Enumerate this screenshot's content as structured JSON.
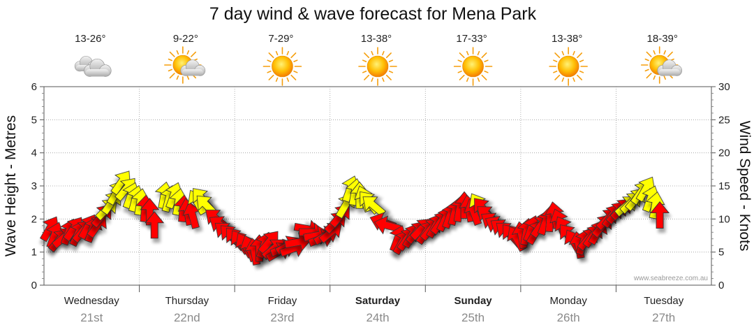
{
  "chart_data": {
    "type": "scatter",
    "title": "7 day wind & wave forecast for Mena Park",
    "ylabel_left": "Wave Height - Metres",
    "ylabel_right": "Wind Speed - Knots",
    "ylim_left": [
      0,
      6
    ],
    "ylim_right": [
      0,
      30
    ],
    "yticks_left": [
      "0",
      "1",
      "2",
      "3",
      "4",
      "5",
      "6"
    ],
    "yticks_right": [
      "0",
      "5",
      "10",
      "15",
      "20",
      "25",
      "30"
    ],
    "credit": "www.seabreeze.com.au",
    "colors": {
      "strong": "#ff0000",
      "moderate": "#ffff00",
      "outline": "#333333",
      "grid": "#9a9a9a"
    },
    "days": [
      {
        "name": "Wednesday",
        "date": "21st",
        "bold": false,
        "temp": "13-26°",
        "icon": "cloudy-icon"
      },
      {
        "name": "Thursday",
        "date": "22nd",
        "bold": false,
        "temp": "9-22°",
        "icon": "sun-cloud-icon"
      },
      {
        "name": "Friday",
        "date": "23rd",
        "bold": false,
        "temp": "7-29°",
        "icon": "sun-icon"
      },
      {
        "name": "Saturday",
        "date": "24th",
        "bold": true,
        "temp": "13-38°",
        "icon": "sun-icon"
      },
      {
        "name": "Sunday",
        "date": "25th",
        "bold": true,
        "temp": "17-33°",
        "icon": "sun-icon"
      },
      {
        "name": "Monday",
        "date": "26th",
        "bold": false,
        "temp": "13-38°",
        "icon": "sun-icon"
      },
      {
        "name": "Tuesday",
        "date": "27th",
        "bold": false,
        "temp": "18-39°",
        "icon": "sun-cloud-icon"
      }
    ],
    "wind_series": {
      "name": "Wind",
      "points": [
        {
          "t": 0.0,
          "knots": 8.5,
          "dir": 210,
          "c": "red"
        },
        {
          "t": 0.05,
          "knots": 7.5,
          "dir": 200,
          "c": "red"
        },
        {
          "t": 0.1,
          "knots": 6.8,
          "dir": 220,
          "c": "red"
        },
        {
          "t": 0.15,
          "knots": 7.2,
          "dir": 230,
          "c": "red"
        },
        {
          "t": 0.2,
          "knots": 8.0,
          "dir": 200,
          "c": "red"
        },
        {
          "t": 0.25,
          "knots": 8.5,
          "dir": 215,
          "c": "red"
        },
        {
          "t": 0.3,
          "knots": 7.8,
          "dir": 205,
          "c": "red"
        },
        {
          "t": 0.35,
          "knots": 8.2,
          "dir": 220,
          "c": "red"
        },
        {
          "t": 0.4,
          "knots": 8.8,
          "dir": 210,
          "c": "red"
        },
        {
          "t": 0.45,
          "knots": 8.4,
          "dir": 200,
          "c": "red"
        },
        {
          "t": 0.5,
          "knots": 9.0,
          "dir": 215,
          "c": "red"
        },
        {
          "t": 0.55,
          "knots": 10.5,
          "dir": 220,
          "c": "red"
        },
        {
          "t": 0.6,
          "knots": 11.5,
          "dir": 225,
          "c": "yellow"
        },
        {
          "t": 0.65,
          "knots": 12.5,
          "dir": 215,
          "c": "yellow"
        },
        {
          "t": 0.7,
          "knots": 14.0,
          "dir": 210,
          "c": "yellow"
        },
        {
          "t": 0.75,
          "knots": 15.5,
          "dir": 215,
          "c": "yellow"
        },
        {
          "t": 0.8,
          "knots": 14.5,
          "dir": 220,
          "c": "yellow"
        },
        {
          "t": 0.85,
          "knots": 13.5,
          "dir": 200,
          "c": "yellow"
        },
        {
          "t": 0.9,
          "knots": 13.0,
          "dir": 195,
          "c": "yellow"
        },
        {
          "t": 0.95,
          "knots": 12.5,
          "dir": 190,
          "c": "yellow"
        },
        {
          "t": 1.0,
          "knots": 11.5,
          "dir": 185,
          "c": "red"
        },
        {
          "t": 1.05,
          "knots": 11.0,
          "dir": 180,
          "c": "red"
        },
        {
          "t": 1.1,
          "knots": 9.0,
          "dir": 180,
          "c": "red"
        },
        {
          "t": 1.2,
          "knots": 13.5,
          "dir": 190,
          "c": "yellow"
        },
        {
          "t": 1.25,
          "knots": 13.0,
          "dir": 195,
          "c": "yellow"
        },
        {
          "t": 1.3,
          "knots": 13.5,
          "dir": 200,
          "c": "yellow"
        },
        {
          "t": 1.35,
          "knots": 12.5,
          "dir": 190,
          "c": "yellow"
        },
        {
          "t": 1.4,
          "knots": 11.5,
          "dir": 185,
          "c": "red"
        },
        {
          "t": 1.45,
          "knots": 11.0,
          "dir": 170,
          "c": "red"
        },
        {
          "t": 1.5,
          "knots": 10.5,
          "dir": 165,
          "c": "red"
        },
        {
          "t": 1.55,
          "knots": 12.5,
          "dir": 150,
          "c": "yellow"
        },
        {
          "t": 1.6,
          "knots": 13.0,
          "dir": 140,
          "c": "yellow"
        },
        {
          "t": 1.65,
          "knots": 12.0,
          "dir": 135,
          "c": "yellow"
        },
        {
          "t": 1.75,
          "knots": 10.0,
          "dir": 130,
          "c": "red"
        },
        {
          "t": 1.8,
          "knots": 9.0,
          "dir": 125,
          "c": "red"
        },
        {
          "t": 1.85,
          "knots": 8.0,
          "dir": 130,
          "c": "red"
        },
        {
          "t": 1.9,
          "knots": 7.5,
          "dir": 135,
          "c": "red"
        },
        {
          "t": 1.95,
          "knots": 7.0,
          "dir": 140,
          "c": "red"
        },
        {
          "t": 2.0,
          "knots": 6.5,
          "dir": 145,
          "c": "red"
        },
        {
          "t": 2.05,
          "knots": 6.0,
          "dir": 150,
          "c": "red"
        },
        {
          "t": 2.1,
          "knots": 5.5,
          "dir": 160,
          "c": "red"
        },
        {
          "t": 2.15,
          "knots": 5.0,
          "dir": 170,
          "c": "red"
        },
        {
          "t": 2.2,
          "knots": 5.5,
          "dir": 180,
          "c": "red"
        },
        {
          "t": 2.25,
          "knots": 6.0,
          "dir": 200,
          "c": "red"
        },
        {
          "t": 2.3,
          "knots": 6.5,
          "dir": 220,
          "c": "red"
        },
        {
          "t": 2.35,
          "knots": 5.5,
          "dir": 230,
          "c": "red"
        },
        {
          "t": 2.4,
          "knots": 5.0,
          "dir": 240,
          "c": "red"
        },
        {
          "t": 2.45,
          "knots": 5.5,
          "dir": 250,
          "c": "red"
        },
        {
          "t": 2.5,
          "knots": 6.0,
          "dir": 240,
          "c": "red"
        },
        {
          "t": 2.55,
          "knots": 5.5,
          "dir": 250,
          "c": "red"
        },
        {
          "t": 2.6,
          "knots": 6.5,
          "dir": 260,
          "c": "red"
        },
        {
          "t": 2.7,
          "knots": 8.5,
          "dir": 280,
          "c": "red"
        },
        {
          "t": 2.75,
          "knots": 8.0,
          "dir": 270,
          "c": "red"
        },
        {
          "t": 2.8,
          "knots": 7.5,
          "dir": 260,
          "c": "red"
        },
        {
          "t": 2.85,
          "knots": 7.0,
          "dir": 250,
          "c": "red"
        },
        {
          "t": 2.9,
          "knots": 7.5,
          "dir": 240,
          "c": "red"
        },
        {
          "t": 2.95,
          "knots": 8.0,
          "dir": 230,
          "c": "red"
        },
        {
          "t": 3.0,
          "knots": 9.5,
          "dir": 225,
          "c": "red"
        },
        {
          "t": 3.05,
          "knots": 10.5,
          "dir": 220,
          "c": "red"
        },
        {
          "t": 3.1,
          "knots": 12.0,
          "dir": 210,
          "c": "yellow"
        },
        {
          "t": 3.15,
          "knots": 14.5,
          "dir": 200,
          "c": "yellow"
        },
        {
          "t": 3.2,
          "knots": 14.0,
          "dir": 190,
          "c": "yellow"
        },
        {
          "t": 3.25,
          "knots": 13.5,
          "dir": 180,
          "c": "yellow"
        },
        {
          "t": 3.3,
          "knots": 13.0,
          "dir": 160,
          "c": "yellow"
        },
        {
          "t": 3.35,
          "knots": 12.5,
          "dir": 140,
          "c": "yellow"
        },
        {
          "t": 3.4,
          "knots": 12.0,
          "dir": 130,
          "c": "yellow"
        },
        {
          "t": 3.5,
          "knots": 9.5,
          "dir": 110,
          "c": "red"
        },
        {
          "t": 3.55,
          "knots": 9.0,
          "dir": 105,
          "c": "red"
        },
        {
          "t": 3.65,
          "knots": 7.0,
          "dir": 200,
          "c": "red"
        },
        {
          "t": 3.7,
          "knots": 6.5,
          "dir": 210,
          "c": "red"
        },
        {
          "t": 3.75,
          "knots": 7.0,
          "dir": 215,
          "c": "red"
        },
        {
          "t": 3.8,
          "knots": 7.5,
          "dir": 210,
          "c": "red"
        },
        {
          "t": 3.85,
          "knots": 8.0,
          "dir": 220,
          "c": "red"
        },
        {
          "t": 3.9,
          "knots": 8.5,
          "dir": 225,
          "c": "red"
        },
        {
          "t": 3.95,
          "knots": 8.0,
          "dir": 215,
          "c": "red"
        },
        {
          "t": 4.0,
          "knots": 8.5,
          "dir": 220,
          "c": "red"
        },
        {
          "t": 4.05,
          "knots": 9.0,
          "dir": 210,
          "c": "red"
        },
        {
          "t": 4.1,
          "knots": 9.5,
          "dir": 215,
          "c": "red"
        },
        {
          "t": 4.15,
          "knots": 10.0,
          "dir": 205,
          "c": "red"
        },
        {
          "t": 4.2,
          "knots": 10.5,
          "dir": 200,
          "c": "red"
        },
        {
          "t": 4.25,
          "knots": 11.0,
          "dir": 195,
          "c": "red"
        },
        {
          "t": 4.3,
          "knots": 11.5,
          "dir": 190,
          "c": "red"
        },
        {
          "t": 4.35,
          "knots": 12.0,
          "dir": 180,
          "c": "red"
        },
        {
          "t": 4.4,
          "knots": 11.5,
          "dir": 170,
          "c": "red"
        },
        {
          "t": 4.45,
          "knots": 11.0,
          "dir": 160,
          "c": "red"
        },
        {
          "t": 4.5,
          "knots": 12.0,
          "dir": 150,
          "c": "yellow"
        },
        {
          "t": 4.55,
          "knots": 11.5,
          "dir": 140,
          "c": "red"
        },
        {
          "t": 4.6,
          "knots": 10.5,
          "dir": 130,
          "c": "red"
        },
        {
          "t": 4.65,
          "knots": 9.5,
          "dir": 125,
          "c": "red"
        },
        {
          "t": 4.7,
          "knots": 9.0,
          "dir": 120,
          "c": "red"
        },
        {
          "t": 4.75,
          "knots": 8.5,
          "dir": 125,
          "c": "red"
        },
        {
          "t": 4.8,
          "knots": 8.0,
          "dir": 130,
          "c": "red"
        },
        {
          "t": 4.85,
          "knots": 7.5,
          "dir": 140,
          "c": "red"
        },
        {
          "t": 4.9,
          "knots": 7.0,
          "dir": 150,
          "c": "red"
        },
        {
          "t": 4.95,
          "knots": 7.5,
          "dir": 170,
          "c": "red"
        },
        {
          "t": 5.0,
          "knots": 8.0,
          "dir": 190,
          "c": "red"
        },
        {
          "t": 5.05,
          "knots": 8.5,
          "dir": 200,
          "c": "red"
        },
        {
          "t": 5.1,
          "knots": 8.0,
          "dir": 210,
          "c": "red"
        },
        {
          "t": 5.15,
          "knots": 9.0,
          "dir": 215,
          "c": "red"
        },
        {
          "t": 5.2,
          "knots": 9.5,
          "dir": 200,
          "c": "red"
        },
        {
          "t": 5.25,
          "knots": 10.0,
          "dir": 185,
          "c": "red"
        },
        {
          "t": 5.3,
          "knots": 10.5,
          "dir": 170,
          "c": "red"
        },
        {
          "t": 5.35,
          "knots": 9.5,
          "dir": 160,
          "c": "red"
        },
        {
          "t": 5.4,
          "knots": 8.5,
          "dir": 150,
          "c": "red"
        },
        {
          "t": 5.45,
          "knots": 7.5,
          "dir": 140,
          "c": "red"
        },
        {
          "t": 5.5,
          "knots": 6.5,
          "dir": 150,
          "c": "red"
        },
        {
          "t": 5.55,
          "knots": 6.0,
          "dir": 170,
          "c": "red"
        },
        {
          "t": 5.6,
          "knots": 6.5,
          "dir": 200,
          "c": "red"
        },
        {
          "t": 5.65,
          "knots": 7.0,
          "dir": 220,
          "c": "red"
        },
        {
          "t": 5.7,
          "knots": 7.5,
          "dir": 215,
          "c": "red"
        },
        {
          "t": 5.75,
          "knots": 8.0,
          "dir": 210,
          "c": "red"
        },
        {
          "t": 5.8,
          "knots": 9.0,
          "dir": 220,
          "c": "red"
        },
        {
          "t": 5.85,
          "knots": 10.0,
          "dir": 225,
          "c": "red"
        },
        {
          "t": 5.9,
          "knots": 10.5,
          "dir": 215,
          "c": "red"
        },
        {
          "t": 5.95,
          "knots": 11.0,
          "dir": 220,
          "c": "red"
        },
        {
          "t": 6.0,
          "knots": 11.5,
          "dir": 225,
          "c": "red"
        },
        {
          "t": 6.05,
          "knots": 12.0,
          "dir": 230,
          "c": "yellow"
        },
        {
          "t": 6.1,
          "knots": 12.5,
          "dir": 225,
          "c": "yellow"
        },
        {
          "t": 6.15,
          "knots": 13.0,
          "dir": 220,
          "c": "yellow"
        },
        {
          "t": 6.2,
          "knots": 14.0,
          "dir": 215,
          "c": "yellow"
        },
        {
          "t": 6.25,
          "knots": 14.5,
          "dir": 210,
          "c": "yellow"
        },
        {
          "t": 6.3,
          "knots": 13.0,
          "dir": 200,
          "c": "yellow"
        },
        {
          "t": 6.35,
          "knots": 12.0,
          "dir": 190,
          "c": "yellow"
        },
        {
          "t": 6.4,
          "knots": 10.5,
          "dir": 180,
          "c": "red"
        }
      ]
    },
    "grid": true,
    "legend": "none"
  }
}
